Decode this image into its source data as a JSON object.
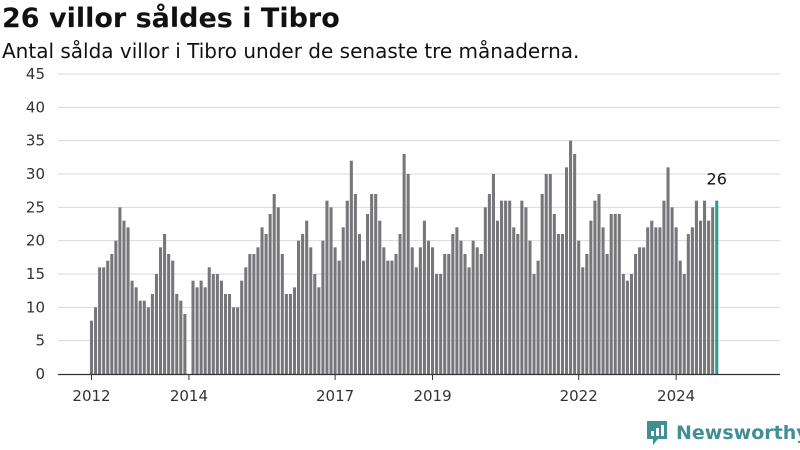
{
  "header": {
    "title": "26 villor såldes i Tibro",
    "subtitle": "Antal sålda villor i Tibro under de senaste tre månaderna."
  },
  "brand": {
    "name": "Newsworthy",
    "icon": "newsworthy-logo-icon"
  },
  "colors": {
    "bar": "#77767b",
    "highlight": "#2a9d8f",
    "grid": "#d9d9d9",
    "axis": "#333333",
    "brand": "#3f8f95"
  },
  "chart_data": {
    "type": "bar",
    "title": "26 villor såldes i Tibro",
    "subtitle": "Antal sålda villor i Tibro under de senaste tre månaderna.",
    "xlabel": "",
    "ylabel": "",
    "x_start": "2012-01",
    "x_end": "2024-11",
    "x_ticks": [
      "2012",
      "2014",
      "2017",
      "2019",
      "2022",
      "2024"
    ],
    "y_ticks": [
      0,
      5,
      10,
      15,
      20,
      25,
      30,
      35,
      40,
      45
    ],
    "ylim": [
      0,
      45
    ],
    "grid": true,
    "highlight_last": true,
    "last_value_label": "26",
    "values": [
      8,
      10,
      16,
      16,
      17,
      18,
      20,
      25,
      23,
      22,
      14,
      13,
      11,
      11,
      10,
      12,
      15,
      19,
      21,
      18,
      17,
      12,
      11,
      9,
      null,
      14,
      13,
      14,
      13,
      16,
      15,
      15,
      14,
      12,
      12,
      10,
      10,
      14,
      16,
      18,
      18,
      19,
      22,
      21,
      24,
      27,
      25,
      18,
      12,
      12,
      13,
      20,
      21,
      23,
      19,
      15,
      13,
      20,
      26,
      25,
      19,
      17,
      22,
      26,
      32,
      27,
      21,
      17,
      24,
      27,
      27,
      23,
      19,
      17,
      17,
      18,
      21,
      33,
      30,
      19,
      16,
      19,
      23,
      20,
      19,
      15,
      15,
      18,
      18,
      21,
      22,
      20,
      18,
      16,
      20,
      19,
      18,
      25,
      27,
      30,
      23,
      26,
      26,
      26,
      22,
      21,
      26,
      25,
      20,
      15,
      17,
      27,
      30,
      30,
      24,
      21,
      21,
      31,
      35,
      33,
      20,
      16,
      18,
      23,
      26,
      27,
      22,
      18,
      24,
      24,
      24,
      15,
      14,
      15,
      18,
      19,
      19,
      22,
      23,
      22,
      22,
      26,
      31,
      25,
      22,
      17,
      15,
      21,
      22,
      26,
      23,
      26,
      23,
      25,
      26
    ]
  }
}
